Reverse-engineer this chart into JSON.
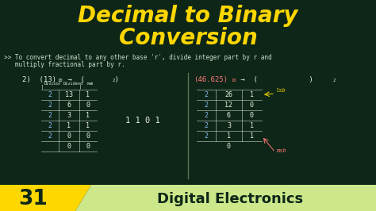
{
  "bg_color": "#0d2618",
  "title_line1": "Decimal to Binary",
  "title_line2": "Conversion",
  "title_color": "#FFD700",
  "subtitle_line1": ">> To convert decimal to any other base 'r', divide integer part by r and",
  "subtitle_line2": "   multiply fractional part by r.",
  "subtitle_color": "#CCDDCC",
  "left_label": "2)  (13)",
  "left_sub": "10",
  "left_arrow_label": "→  (        )",
  "left_arrow_sub": "2",
  "right_label": "(46.625)",
  "right_sub": "10",
  "right_arrow_label": "→  (                   )",
  "right_arrow_sub": "2",
  "left_col1": [
    "2",
    "2",
    "2",
    "2",
    "2",
    ""
  ],
  "left_col2": [
    "13",
    "6",
    "3",
    "1",
    "0",
    "0"
  ],
  "left_col3": [
    "1",
    "0",
    "1",
    "1",
    "0",
    "0"
  ],
  "right_col1": [
    "2",
    "2",
    "2",
    "2",
    "2"
  ],
  "right_col2": [
    "26",
    "12",
    "6",
    "3",
    "1"
  ],
  "right_col3": [
    "1",
    "0",
    "0",
    "1",
    "1"
  ],
  "right_extra": "0",
  "result_text": "1 1 0 1",
  "lsb_label": "lsb",
  "msb_label": "msb",
  "footer_bg": "#FFD700",
  "footer_num": "31",
  "footer_text": "Digital Electronics",
  "footer_text_color": "#0d2618",
  "footer_light_bg": "#cce88a",
  "table_color": "#DDEECC",
  "red_color": "#FF7777",
  "yellow_color": "#FFD700",
  "chalk_white": "#E8F0E0",
  "chalk_blue": "#88BBEE",
  "divider_color": "#557755"
}
